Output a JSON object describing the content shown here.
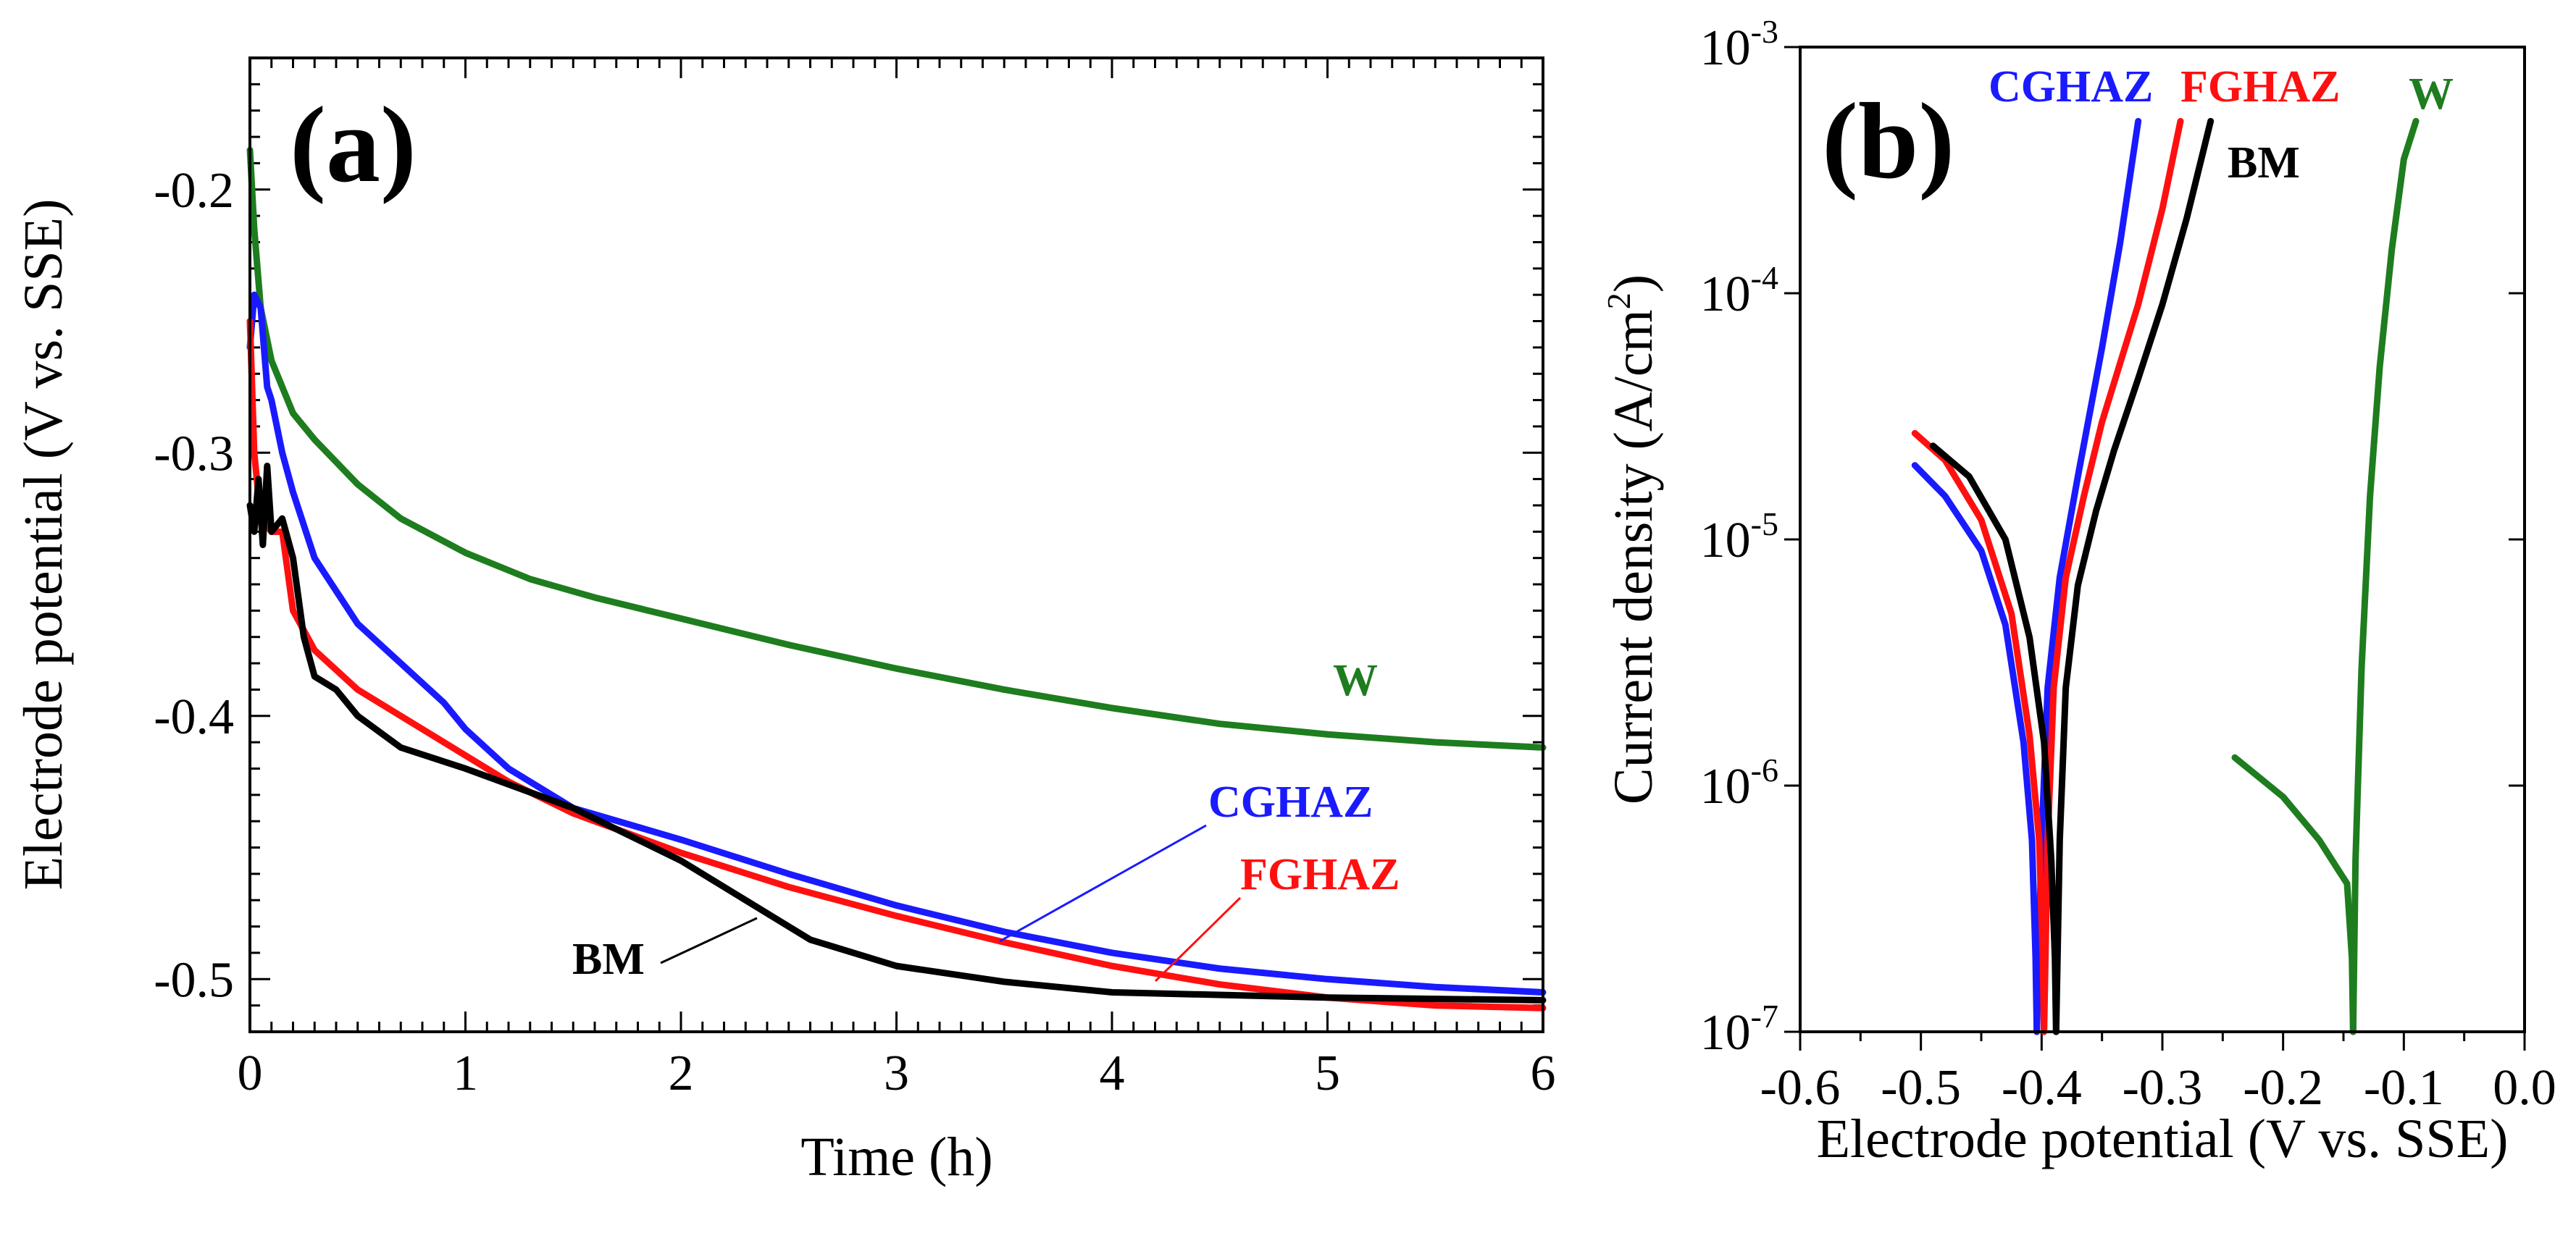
{
  "colors": {
    "W": "#1e7d1e",
    "CGHAZ": "#1a1aff",
    "FGHAZ": "#ff1010",
    "BM": "#000000"
  },
  "chart_data": [
    {
      "type": "line",
      "panel_label": "(a)",
      "xlabel": "Time (h)",
      "ylabel": "Electrode potential (V vs. SSE)",
      "xlim": [
        0,
        6
      ],
      "ylim": [
        -0.52,
        -0.15
      ],
      "xticks": [
        0,
        1,
        2,
        3,
        4,
        5,
        6
      ],
      "xtick_labels": [
        "0",
        "1",
        "2",
        "3",
        "4",
        "5",
        "6"
      ],
      "yticks": [
        -0.2,
        -0.3,
        -0.4,
        -0.5
      ],
      "ytick_labels": [
        "-0.2",
        "-0.3",
        "-0.4",
        "-0.5"
      ],
      "series": [
        {
          "name": "W",
          "label": "W",
          "x": [
            0,
            0.02,
            0.05,
            0.1,
            0.2,
            0.3,
            0.5,
            0.7,
            1.0,
            1.3,
            1.6,
            2.0,
            2.5,
            3.0,
            3.5,
            4.0,
            4.5,
            5.0,
            5.5,
            6.0
          ],
          "y": [
            -0.185,
            -0.215,
            -0.245,
            -0.265,
            -0.285,
            -0.295,
            -0.312,
            -0.325,
            -0.338,
            -0.348,
            -0.355,
            -0.363,
            -0.373,
            -0.382,
            -0.39,
            -0.397,
            -0.403,
            -0.407,
            -0.41,
            -0.412
          ]
        },
        {
          "name": "CGHAZ",
          "label": "CGHAZ",
          "x": [
            0,
            0.02,
            0.05,
            0.08,
            0.1,
            0.15,
            0.2,
            0.3,
            0.5,
            0.7,
            0.9,
            1.0,
            1.2,
            1.5,
            2.0,
            2.5,
            3.0,
            3.5,
            4.0,
            4.5,
            5.0,
            5.5,
            6.0
          ],
          "y": [
            -0.26,
            -0.24,
            -0.245,
            -0.275,
            -0.28,
            -0.3,
            -0.315,
            -0.34,
            -0.365,
            -0.38,
            -0.395,
            -0.405,
            -0.42,
            -0.435,
            -0.447,
            -0.46,
            -0.472,
            -0.482,
            -0.49,
            -0.496,
            -0.5,
            -0.503,
            -0.505
          ]
        },
        {
          "name": "FGHAZ",
          "label": "FGHAZ",
          "x": [
            0,
            0.02,
            0.05,
            0.1,
            0.15,
            0.2,
            0.3,
            0.5,
            0.7,
            1.0,
            1.2,
            1.5,
            2.0,
            2.5,
            3.0,
            3.5,
            4.0,
            4.5,
            5.0,
            5.5,
            6.0
          ],
          "y": [
            -0.25,
            -0.3,
            -0.325,
            -0.33,
            -0.33,
            -0.36,
            -0.375,
            -0.39,
            -0.4,
            -0.415,
            -0.425,
            -0.437,
            -0.452,
            -0.465,
            -0.476,
            -0.486,
            -0.495,
            -0.502,
            -0.507,
            -0.51,
            -0.511
          ]
        },
        {
          "name": "BM",
          "label": "BM",
          "x": [
            0,
            0.02,
            0.04,
            0.06,
            0.08,
            0.1,
            0.15,
            0.2,
            0.25,
            0.3,
            0.4,
            0.5,
            0.7,
            1.0,
            1.5,
            2.0,
            2.3,
            2.6,
            3.0,
            3.5,
            4.0,
            5.0,
            6.0
          ],
          "y": [
            -0.32,
            -0.33,
            -0.31,
            -0.335,
            -0.305,
            -0.33,
            -0.325,
            -0.34,
            -0.37,
            -0.385,
            -0.39,
            -0.4,
            -0.412,
            -0.42,
            -0.435,
            -0.455,
            -0.47,
            -0.485,
            -0.495,
            -0.501,
            -0.505,
            -0.507,
            -0.508
          ]
        }
      ]
    },
    {
      "type": "line",
      "panel_label": "(b)",
      "xlabel": "Electrode potential (V vs. SSE)",
      "ylabel": "Current density  (A/cm²)",
      "yscale": "log",
      "xlim": [
        -0.6,
        0.0
      ],
      "ylim": [
        1e-07,
        0.001
      ],
      "xticks": [
        -0.6,
        -0.5,
        -0.4,
        -0.3,
        -0.2,
        -0.1,
        0.0
      ],
      "xtick_labels": [
        "-0.6",
        "-0.5",
        "-0.4",
        "-0.3",
        "-0.2",
        "-0.1",
        "0.0"
      ],
      "yticks": [
        -7,
        -6,
        -5,
        -4,
        -3
      ],
      "ytick_base": "10",
      "ytick_exponents": [
        "-7",
        "-6",
        "-5",
        "-4",
        "-3"
      ],
      "series": [
        {
          "name": "CGHAZ",
          "label": "CGHAZ",
          "cathodic": {
            "x": [
              -0.505,
              -0.48,
              -0.45,
              -0.43,
              -0.415,
              -0.408,
              -0.405,
              -0.404
            ],
            "y": [
              2e-05,
              1.5e-05,
              9e-06,
              4.5e-06,
              1.5e-06,
              6e-07,
              2e-07,
              1e-07
            ]
          },
          "anodic": {
            "x": [
              -0.404,
              -0.4,
              -0.395,
              -0.385,
              -0.37,
              -0.35,
              -0.335,
              -0.32
            ],
            "y": [
              1e-07,
              6e-07,
              2.5e-06,
              7e-06,
              1.8e-05,
              6e-05,
              0.00016,
              0.0005
            ]
          }
        },
        {
          "name": "FGHAZ",
          "label": "FGHAZ",
          "cathodic": {
            "x": [
              -0.505,
              -0.48,
              -0.45,
              -0.425,
              -0.41,
              -0.402,
              -0.399,
              -0.398
            ],
            "y": [
              2.7e-05,
              2.1e-05,
              1.2e-05,
              5e-06,
              1.6e-06,
              6e-07,
              2e-07,
              1e-07
            ]
          },
          "anodic": {
            "x": [
              -0.398,
              -0.395,
              -0.39,
              -0.38,
              -0.365,
              -0.35,
              -0.32,
              -0.3,
              -0.285
            ],
            "y": [
              1e-07,
              6e-07,
              2.5e-06,
              7e-06,
              1.5e-05,
              3e-05,
              9e-05,
              0.00022,
              0.0005
            ]
          }
        },
        {
          "name": "BM",
          "label": "BM",
          "cathodic": {
            "x": [
              -0.49,
              -0.46,
              -0.43,
              -0.41,
              -0.398,
              -0.392,
              -0.389,
              -0.388
            ],
            "y": [
              2.4e-05,
              1.8e-05,
              1e-05,
              4e-06,
              1.5e-06,
              5e-07,
              2e-07,
              1e-07
            ]
          },
          "anodic": {
            "x": [
              -0.388,
              -0.385,
              -0.38,
              -0.37,
              -0.355,
              -0.34,
              -0.32,
              -0.3,
              -0.28,
              -0.26
            ],
            "y": [
              1e-07,
              6e-07,
              2.5e-06,
              6.5e-06,
              1.3e-05,
              2.3e-05,
              4.5e-05,
              9e-05,
              0.0002,
              0.0005
            ]
          }
        },
        {
          "name": "W",
          "label": "W",
          "cathodic": {
            "x": [
              -0.24,
              -0.2,
              -0.17,
              -0.155,
              -0.147,
              -0.143,
              -0.142
            ],
            "y": [
              1.3e-06,
              9e-07,
              6e-07,
              4.6e-07,
              4e-07,
              2e-07,
              1e-07
            ]
          },
          "anodic": {
            "x": [
              -0.142,
              -0.14,
              -0.135,
              -0.128,
              -0.12,
              -0.11,
              -0.1,
              -0.09
            ],
            "y": [
              1e-07,
              5e-07,
              3e-06,
              1.5e-05,
              5e-05,
              0.00015,
              0.00035,
              0.0005
            ]
          }
        }
      ]
    }
  ]
}
